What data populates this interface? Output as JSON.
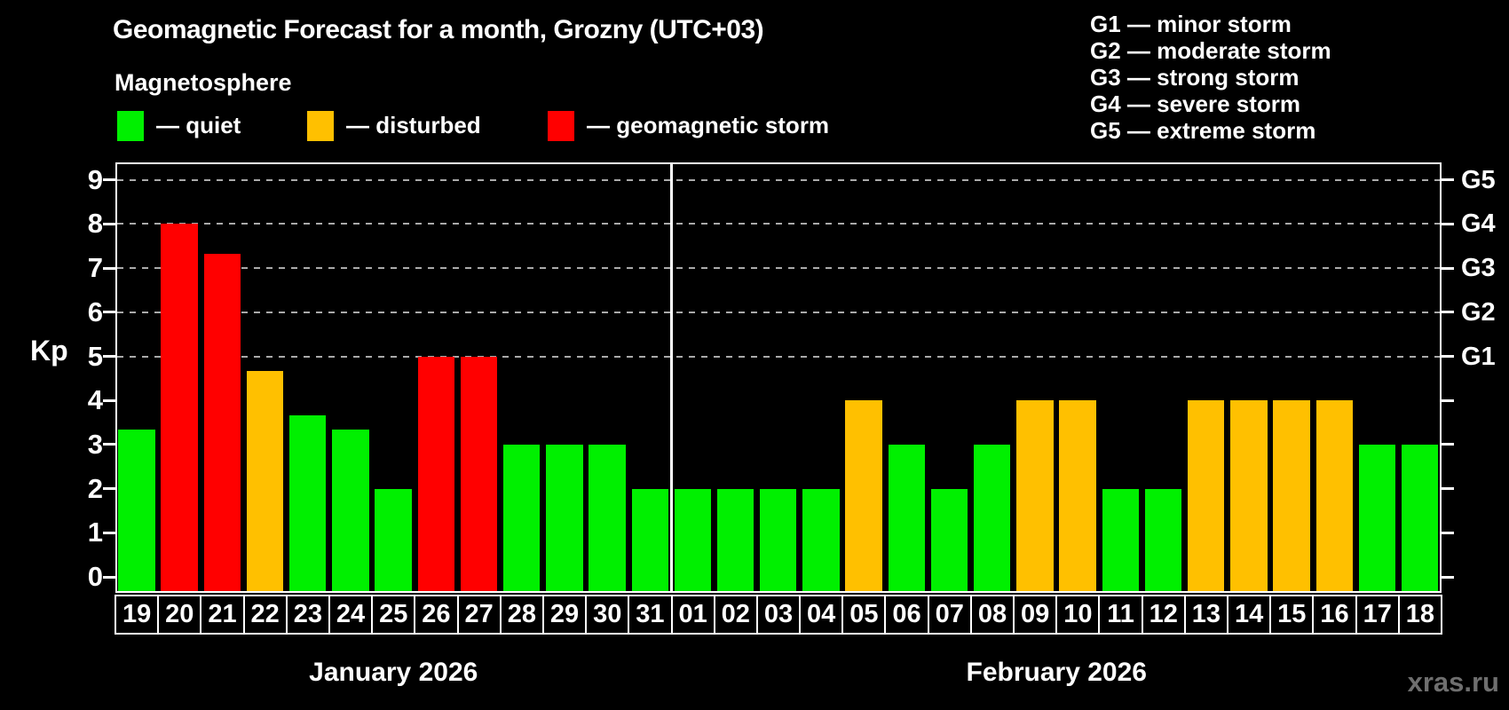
{
  "header": {
    "title": "Geomagnetic Forecast for a month, Grozny (UTC+03)",
    "subtitle": "Magnetosphere"
  },
  "legend": {
    "items": [
      {
        "key": "quiet",
        "label": "— quiet"
      },
      {
        "key": "disturbed",
        "label": "— disturbed"
      },
      {
        "key": "storm",
        "label": "— geomagnetic storm"
      }
    ]
  },
  "g_legend": [
    "G1 — minor storm",
    "G2 — moderate storm",
    "G3 — strong storm",
    "G4 — severe storm",
    "G5 — extreme storm"
  ],
  "colors": {
    "quiet": "#00F000",
    "disturbed": "#FFC000",
    "storm": "#FF0000",
    "frame": "#FFFFFF",
    "grid": "#AAAAAA",
    "watermark": "#6F6F6F",
    "background": "#000000"
  },
  "watermark": "xras.ru",
  "chart_data": {
    "type": "bar",
    "title": "Geomagnetic Forecast for a month, Grozny (UTC+03)",
    "xlabel": "",
    "ylabel": "Kp",
    "ylim": [
      0,
      9
    ],
    "y_ticks": [
      0,
      1,
      2,
      3,
      4,
      5,
      6,
      7,
      8,
      9
    ],
    "gridlines_at": [
      5,
      6,
      7,
      8,
      9
    ],
    "grid": "dashed, only at G-storm levels",
    "legend_position": "top",
    "right_axis": [
      {
        "label": "G1",
        "kp": 5
      },
      {
        "label": "G2",
        "kp": 6
      },
      {
        "label": "G3",
        "kp": 7
      },
      {
        "label": "G4",
        "kp": 8
      },
      {
        "label": "G5",
        "kp": 9
      }
    ],
    "categories": [
      "19",
      "20",
      "21",
      "22",
      "23",
      "24",
      "25",
      "26",
      "27",
      "28",
      "29",
      "30",
      "31",
      "01",
      "02",
      "03",
      "04",
      "05",
      "06",
      "07",
      "08",
      "09",
      "10",
      "11",
      "12",
      "13",
      "14",
      "15",
      "16",
      "17",
      "18"
    ],
    "values": [
      3.33,
      8,
      7.33,
      4.67,
      3.67,
      3.33,
      2,
      5,
      5,
      3,
      3,
      3,
      2,
      2,
      2,
      2,
      2,
      4,
      3,
      2,
      3,
      4,
      4,
      2,
      2,
      4,
      4,
      4,
      4,
      3,
      3
    ],
    "statuses": [
      "quiet",
      "storm",
      "storm",
      "disturbed",
      "quiet",
      "quiet",
      "quiet",
      "storm",
      "storm",
      "quiet",
      "quiet",
      "quiet",
      "quiet",
      "quiet",
      "quiet",
      "quiet",
      "quiet",
      "disturbed",
      "quiet",
      "quiet",
      "quiet",
      "disturbed",
      "disturbed",
      "quiet",
      "quiet",
      "disturbed",
      "disturbed",
      "disturbed",
      "disturbed",
      "quiet",
      "quiet"
    ],
    "months": [
      {
        "label": "January 2026",
        "start": 0,
        "count": 13
      },
      {
        "label": "February 2026",
        "start": 13,
        "count": 18
      }
    ]
  }
}
